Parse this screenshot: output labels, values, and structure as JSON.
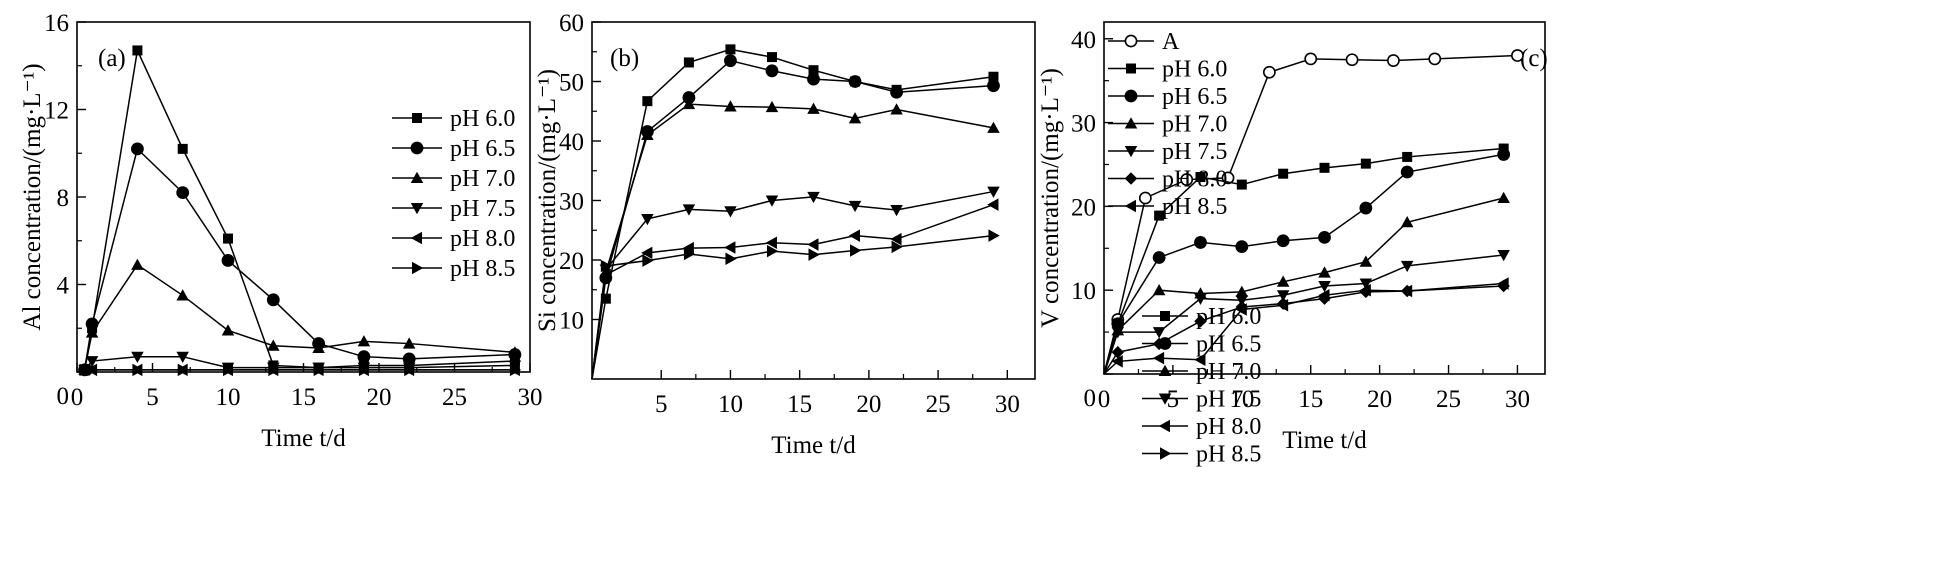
{
  "chart_data": [
    {
      "type": "line",
      "panel_label": "(a)",
      "xlabel": "Time t/d",
      "ylabel": "Al concentration/(mg·L⁻¹)",
      "xlim": [
        0,
        30
      ],
      "ylim": [
        0,
        16
      ],
      "xticks": [
        0,
        5,
        10,
        15,
        20,
        25,
        30
      ],
      "yticks": [
        0,
        4,
        8,
        12,
        16
      ],
      "ytick_labels": [
        "",
        "4",
        "8",
        "12",
        "16"
      ],
      "legend_position": "upper-middle",
      "series": [
        {
          "name": "pH 6.0",
          "marker": "square",
          "x": [
            0.5,
            1,
            4,
            7,
            10,
            13,
            16,
            19,
            22,
            29
          ],
          "y": [
            0.1,
            2.0,
            14.7,
            10.2,
            6.1,
            0.3,
            0.2,
            0.3,
            0.3,
            0.5
          ]
        },
        {
          "name": "pH 6.5",
          "marker": "circle",
          "x": [
            0.5,
            1,
            4,
            7,
            10,
            13,
            16,
            19,
            22,
            29
          ],
          "y": [
            0.1,
            2.2,
            10.2,
            8.2,
            5.1,
            3.3,
            1.3,
            0.7,
            0.6,
            0.8
          ]
        },
        {
          "name": "pH 7.0",
          "marker": "triangle-up",
          "x": [
            0.5,
            1,
            4,
            7,
            10,
            13,
            16,
            19,
            22,
            29
          ],
          "y": [
            0.1,
            1.8,
            4.9,
            3.5,
            1.9,
            1.2,
            1.1,
            1.4,
            1.3,
            0.9
          ]
        },
        {
          "name": "pH 7.5",
          "marker": "triangle-down",
          "x": [
            0.5,
            1,
            4,
            7,
            10,
            13,
            16,
            19,
            22,
            29
          ],
          "y": [
            0.1,
            0.5,
            0.7,
            0.7,
            0.2,
            0.2,
            0.2,
            0.2,
            0.2,
            0.3
          ]
        },
        {
          "name": "pH 8.0",
          "marker": "triangle-left",
          "x": [
            0.5,
            1,
            4,
            7,
            10,
            13,
            16,
            19,
            22,
            29
          ],
          "y": [
            0.1,
            0.1,
            0.1,
            0.1,
            0.1,
            0.1,
            0.1,
            0.1,
            0.1,
            0.1
          ]
        },
        {
          "name": "pH 8.5",
          "marker": "triangle-right",
          "x": [
            0.5,
            1,
            4,
            7,
            10,
            13,
            16,
            19,
            22,
            29
          ],
          "y": [
            0.1,
            0.1,
            0.1,
            0.1,
            0.1,
            0.1,
            0.1,
            0.1,
            0.1,
            0.1
          ]
        }
      ]
    },
    {
      "type": "line",
      "panel_label": "(b)",
      "xlabel": "Time t/d",
      "ylabel": "Si concentration/(mg·L⁻¹)",
      "xlim": [
        0,
        32
      ],
      "ylim": [
        0,
        60
      ],
      "xticks": [
        5,
        10,
        15,
        20,
        25,
        30
      ],
      "yticks": [
        10,
        20,
        30,
        40,
        50,
        60
      ],
      "legend_position": "lower-right",
      "series": [
        {
          "name": "pH 6.0",
          "marker": "square",
          "x": [
            0,
            1,
            4,
            7,
            10,
            13,
            16,
            19,
            22,
            29
          ],
          "y": [
            0,
            13.5,
            46.7,
            53.2,
            55.4,
            54.1,
            51.9,
            50.0,
            48.6,
            50.8
          ]
        },
        {
          "name": "pH 6.5",
          "marker": "circle",
          "x": [
            0,
            1,
            4,
            7,
            10,
            13,
            16,
            19,
            22,
            29
          ],
          "y": [
            0,
            17.0,
            41.6,
            47.3,
            53.5,
            51.8,
            50.4,
            50.0,
            48.2,
            49.3
          ]
        },
        {
          "name": "pH 7.0",
          "marker": "triangle-up",
          "x": [
            0,
            1,
            4,
            7,
            10,
            13,
            16,
            19,
            22,
            29
          ],
          "y": [
            0,
            18.0,
            41.0,
            46.2,
            45.8,
            45.7,
            45.4,
            43.8,
            45.3,
            42.2
          ]
        },
        {
          "name": "pH 7.5",
          "marker": "triangle-down",
          "x": [
            0,
            1,
            4,
            7,
            10,
            13,
            16,
            19,
            22,
            29
          ],
          "y": [
            0,
            18.4,
            26.9,
            28.5,
            28.2,
            30.0,
            30.6,
            29.1,
            28.4,
            31.5
          ]
        },
        {
          "name": "pH 8.0",
          "marker": "triangle-left",
          "x": [
            0,
            1,
            4,
            7,
            10,
            13,
            16,
            19,
            22,
            29
          ],
          "y": [
            0,
            17.5,
            21.2,
            22.0,
            22.1,
            22.9,
            22.6,
            24.1,
            23.5,
            29.3
          ]
        },
        {
          "name": "pH 8.5",
          "marker": "triangle-right",
          "x": [
            0,
            1,
            4,
            7,
            10,
            13,
            16,
            19,
            22,
            29
          ],
          "y": [
            0,
            19.0,
            19.9,
            21.0,
            20.2,
            21.5,
            20.9,
            21.6,
            22.2,
            24.1
          ]
        }
      ]
    },
    {
      "type": "line",
      "panel_label": "(c)",
      "xlabel": "Time t/d",
      "ylabel": "V concentration/(mg·L⁻¹)",
      "xlim": [
        0,
        32
      ],
      "ylim": [
        0,
        42
      ],
      "xticks": [
        0,
        5,
        10,
        15,
        20,
        25,
        30
      ],
      "yticks": [
        0,
        10,
        20,
        30,
        40
      ],
      "ytick_labels": [
        "",
        "10",
        "20",
        "30",
        "40"
      ],
      "legend_position": "top-left",
      "series": [
        {
          "name": "A",
          "marker": "open-circle",
          "x": [
            0,
            1,
            3,
            6,
            9,
            12,
            15,
            18,
            21,
            24,
            30
          ],
          "y": [
            0,
            6.5,
            21.0,
            23.2,
            23.4,
            36.0,
            37.6,
            37.5,
            37.4,
            37.6,
            38.0
          ]
        },
        {
          "name": "pH 6.0",
          "marker": "square",
          "x": [
            0,
            1,
            4,
            7,
            10,
            13,
            16,
            19,
            22,
            29
          ],
          "y": [
            0,
            6.0,
            18.9,
            23.5,
            22.6,
            23.9,
            24.6,
            25.1,
            25.9,
            26.9
          ]
        },
        {
          "name": "pH 6.5",
          "marker": "circle",
          "x": [
            0,
            1,
            4,
            7,
            10,
            13,
            16,
            19,
            22,
            29
          ],
          "y": [
            0,
            6.0,
            13.9,
            15.7,
            15.2,
            15.9,
            16.3,
            19.8,
            24.1,
            26.2
          ]
        },
        {
          "name": "pH 7.0",
          "marker": "triangle-up",
          "x": [
            0,
            1,
            4,
            7,
            10,
            13,
            16,
            19,
            22,
            29
          ],
          "y": [
            0,
            5.2,
            10.0,
            9.6,
            9.8,
            11.0,
            12.1,
            13.4,
            18.1,
            21.0
          ]
        },
        {
          "name": "pH 7.5",
          "marker": "triangle-down",
          "x": [
            0,
            1,
            4,
            7,
            10,
            13,
            16,
            19,
            22,
            29
          ],
          "y": [
            0,
            5.0,
            5.0,
            9.0,
            8.8,
            9.4,
            10.5,
            10.8,
            12.9,
            14.2
          ]
        },
        {
          "name": "pH 8.0",
          "marker": "diamond",
          "x": [
            0,
            1,
            4,
            7,
            10,
            13,
            16,
            19,
            22,
            29
          ],
          "y": [
            0,
            2.6,
            3.6,
            6.3,
            8.0,
            8.4,
            9.0,
            9.8,
            9.9,
            10.5
          ]
        },
        {
          "name": "pH 8.5",
          "marker": "triangle-left",
          "x": [
            0,
            1,
            4,
            7,
            10,
            13,
            16,
            19,
            22,
            29
          ],
          "y": [
            0,
            1.5,
            1.9,
            1.7,
            7.7,
            8.2,
            9.4,
            10.0,
            9.9,
            10.8
          ]
        }
      ]
    }
  ]
}
